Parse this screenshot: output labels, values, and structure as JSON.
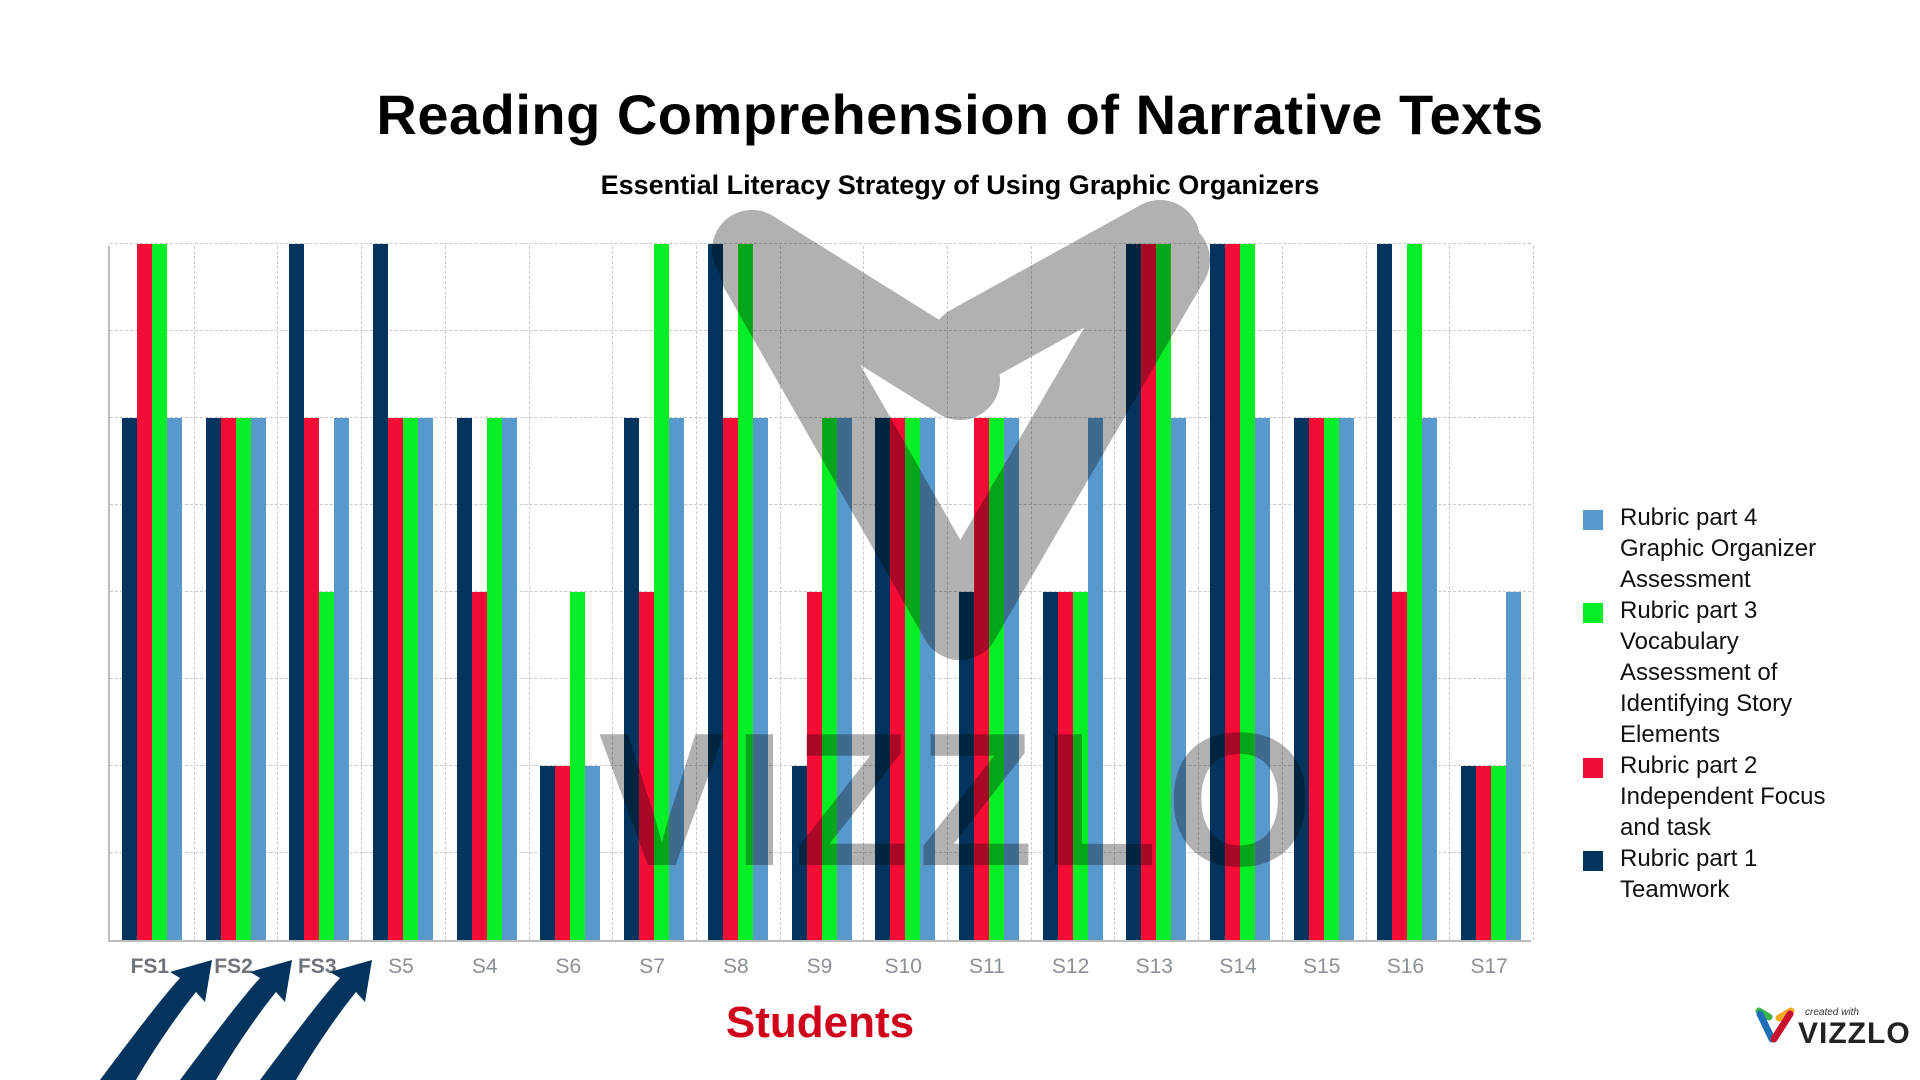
{
  "title": "Reading Comprehension of Narrative Texts",
  "subtitle": "Essential Literacy Strategy of Using Graphic Organizers",
  "x_axis_title": "Students",
  "watermark": "VIZZLO",
  "logo": {
    "small": "created with",
    "big": "VIZZLO"
  },
  "legend": [
    {
      "label": "Rubric part 4 Graphic Organizer Assessment",
      "color": "#5899cd"
    },
    {
      "label": "Rubric part 3 Vocabulary Assessment of Identifying Story Elements",
      "color": "#08ee26"
    },
    {
      "label": "Rubric part 2 Independent Focus and task",
      "color": "#f20c36"
    },
    {
      "label": "Rubric part 1 Teamwork",
      "color": "#02345d"
    }
  ],
  "chart_data": {
    "type": "bar",
    "title": "Reading Comprehension of Narrative Texts",
    "subtitle": "Essential Literacy Strategy of Using Graphic Organizers",
    "xlabel": "Students",
    "ylabel": "",
    "ylim": [
      0,
      8
    ],
    "grid": true,
    "y_ticks_shown": false,
    "legend_position": "right",
    "categories": [
      "FS1",
      "FS2",
      "FS3",
      "S5",
      "S4",
      "S6",
      "S7",
      "S8",
      "S9",
      "S10",
      "S11",
      "S12",
      "S13",
      "S14",
      "S15",
      "S16",
      "S17"
    ],
    "bold_categories": [
      "FS1",
      "FS2",
      "FS3"
    ],
    "series": [
      {
        "name": "Rubric part 1 Teamwork",
        "color": "#02345d",
        "values": [
          6,
          6,
          8,
          8,
          6,
          2,
          6,
          8,
          2,
          6,
          4,
          4,
          8,
          8,
          6,
          8,
          2
        ]
      },
      {
        "name": "Rubric part 2 Independent Focus and task",
        "color": "#f20c36",
        "values": [
          8,
          6,
          6,
          6,
          4,
          2,
          4,
          6,
          4,
          6,
          6,
          4,
          8,
          8,
          6,
          4,
          2
        ]
      },
      {
        "name": "Rubric part 3 Vocabulary Assessment of Identifying Story Elements",
        "color": "#08ee26",
        "values": [
          8,
          6,
          4,
          6,
          6,
          4,
          8,
          8,
          6,
          6,
          6,
          4,
          8,
          8,
          6,
          8,
          2
        ]
      },
      {
        "name": "Rubric part 4 Graphic Organizer Assessment",
        "color": "#5899cd",
        "values": [
          6,
          6,
          6,
          6,
          6,
          2,
          6,
          6,
          6,
          6,
          6,
          6,
          6,
          6,
          6,
          6,
          4
        ]
      }
    ],
    "annotations": [
      "Three arrows pointing to FS1, FS2, FS3"
    ]
  }
}
